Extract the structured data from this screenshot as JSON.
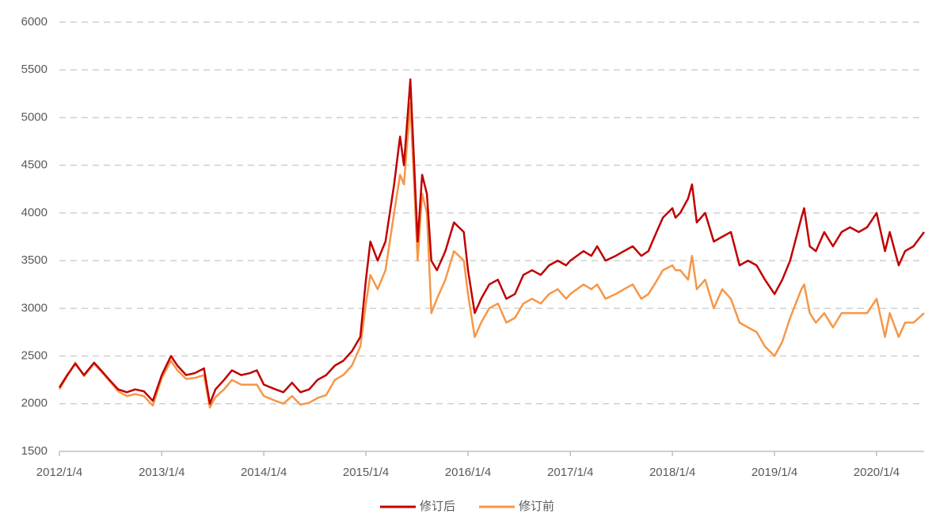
{
  "chart_data": {
    "type": "line",
    "x": [
      "2012/1/4",
      "2012/2/1",
      "2012/3/1",
      "2012/4/1",
      "2012/5/7",
      "2012/6/1",
      "2012/7/1",
      "2012/8/1",
      "2012/9/1",
      "2012/10/1",
      "2012/11/1",
      "2012/12/3",
      "2013/1/4",
      "2013/2/6",
      "2013/3/1",
      "2013/4/1",
      "2013/5/2",
      "2013/6/4",
      "2013/6/25",
      "2013/7/15",
      "2013/8/15",
      "2013/9/12",
      "2013/10/15",
      "2013/11/15",
      "2013/12/10",
      "2014/1/4",
      "2014/2/15",
      "2014/3/15",
      "2014/4/15",
      "2014/5/15",
      "2014/6/15",
      "2014/7/15",
      "2014/8/15",
      "2014/9/15",
      "2014/10/15",
      "2014/11/15",
      "2014/12/15",
      "2015/1/4",
      "2015/1/20",
      "2015/2/15",
      "2015/3/15",
      "2015/4/15",
      "2015/5/6",
      "2015/5/20",
      "2015/6/12",
      "2015/7/8",
      "2015/7/24",
      "2015/8/10",
      "2015/8/26",
      "2015/9/15",
      "2015/10/15",
      "2015/11/15",
      "2015/12/20",
      "2016/1/4",
      "2016/1/28",
      "2016/2/20",
      "2016/3/20",
      "2016/4/20",
      "2016/5/20",
      "2016/6/20",
      "2016/7/20",
      "2016/8/20",
      "2016/9/20",
      "2016/10/20",
      "2016/11/20",
      "2016/12/20",
      "2017/1/4",
      "2017/2/20",
      "2017/3/20",
      "2017/4/10",
      "2017/5/10",
      "2017/6/15",
      "2017/7/15",
      "2017/8/15",
      "2017/9/15",
      "2017/10/10",
      "2017/11/1",
      "2017/12/1",
      "2018/1/4",
      "2018/1/15",
      "2018/2/1",
      "2018/3/1",
      "2018/3/15",
      "2018/4/1",
      "2018/5/1",
      "2018/6/1",
      "2018/7/1",
      "2018/8/1",
      "2018/9/1",
      "2018/10/1",
      "2018/11/1",
      "2018/12/1",
      "2019/1/4",
      "2019/2/1",
      "2019/3/1",
      "2019/4/10",
      "2019/4/20",
      "2019/5/10",
      "2019/6/1",
      "2019/7/1",
      "2019/8/1",
      "2019/9/1",
      "2019/10/1",
      "2019/11/1",
      "2019/12/1",
      "2020/1/4",
      "2020/2/3",
      "2020/2/20",
      "2020/3/23",
      "2020/4/15",
      "2020/5/15",
      "2020/6/22"
    ],
    "series": [
      {
        "name": "修订后",
        "color": "#c00000",
        "values": [
          2170,
          2300,
          2420,
          2300,
          2430,
          2350,
          2250,
          2150,
          2120,
          2150,
          2130,
          2030,
          2300,
          2500,
          2400,
          2300,
          2320,
          2370,
          2000,
          2150,
          2250,
          2350,
          2300,
          2320,
          2350,
          2200,
          2150,
          2120,
          2220,
          2120,
          2150,
          2250,
          2300,
          2400,
          2450,
          2550,
          2700,
          3300,
          3700,
          3500,
          3700,
          4300,
          4800,
          4500,
          5400,
          3700,
          4400,
          4200,
          3500,
          3400,
          3600,
          3900,
          3800,
          3400,
          2950,
          3100,
          3250,
          3300,
          3100,
          3150,
          3350,
          3400,
          3350,
          3450,
          3500,
          3450,
          3500,
          3600,
          3550,
          3650,
          3500,
          3550,
          3600,
          3650,
          3550,
          3600,
          3750,
          3950,
          4050,
          3950,
          4000,
          4150,
          4300,
          3900,
          4000,
          3700,
          3750,
          3800,
          3450,
          3500,
          3450,
          3300,
          3150,
          3300,
          3500,
          3950,
          4050,
          3650,
          3600,
          3800,
          3650,
          3800,
          3850,
          3800,
          3850,
          4000,
          3600,
          3800,
          3450,
          3600,
          3650,
          3800
        ]
      },
      {
        "name": "修订前",
        "color": "#f79646",
        "values": [
          2150,
          2290,
          2430,
          2290,
          2420,
          2340,
          2240,
          2130,
          2080,
          2100,
          2080,
          1980,
          2270,
          2450,
          2350,
          2260,
          2270,
          2300,
          1960,
          2070,
          2150,
          2250,
          2200,
          2200,
          2200,
          2080,
          2030,
          2000,
          2080,
          1990,
          2010,
          2060,
          2090,
          2250,
          2300,
          2400,
          2600,
          3050,
          3350,
          3200,
          3400,
          4000,
          4400,
          4300,
          5150,
          3500,
          4200,
          4000,
          2950,
          3100,
          3300,
          3600,
          3500,
          3150,
          2700,
          2850,
          3000,
          3050,
          2850,
          2900,
          3050,
          3100,
          3050,
          3150,
          3200,
          3100,
          3150,
          3250,
          3200,
          3250,
          3100,
          3150,
          3200,
          3250,
          3100,
          3150,
          3250,
          3400,
          3450,
          3400,
          3400,
          3300,
          3550,
          3200,
          3300,
          3000,
          3200,
          3100,
          2850,
          2800,
          2750,
          2600,
          2500,
          2650,
          2900,
          3200,
          3250,
          2950,
          2850,
          2950,
          2800,
          2950,
          2950,
          2950,
          2950,
          3100,
          2700,
          2950,
          2700,
          2850,
          2850,
          2950
        ]
      }
    ],
    "xlim": [
      "2012/1/4",
      "2020/6/22"
    ],
    "xticks": [
      "2012/1/4",
      "2013/1/4",
      "2014/1/4",
      "2015/1/4",
      "2016/1/4",
      "2017/1/4",
      "2018/1/4",
      "2019/1/4",
      "2020/1/4"
    ],
    "ylim": [
      1500,
      6000
    ],
    "yticks": [
      1500,
      2000,
      2500,
      3000,
      3500,
      4000,
      4500,
      5000,
      5500,
      6000
    ],
    "grid": true,
    "legend": "bottom"
  }
}
